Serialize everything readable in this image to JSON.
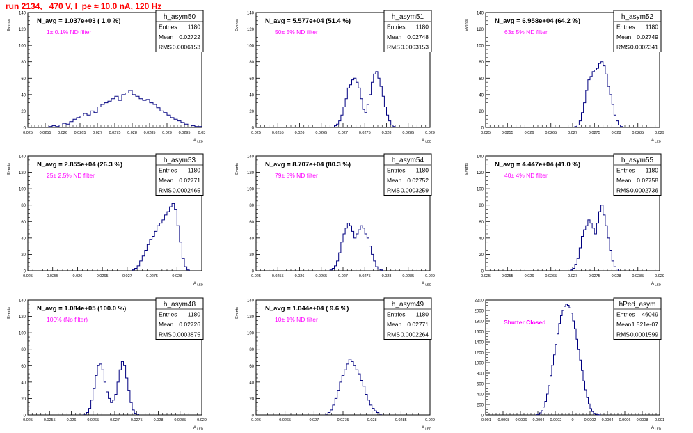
{
  "title": "run 2134,   470 V, I_pe ≈ 10.0 nA, 120 Hz",
  "colors": {
    "title": "#ff0000",
    "hist": "#000080",
    "annotation": "#ff00ff"
  },
  "chart_data": [
    {
      "type": "histogram",
      "name": "h_asym50",
      "navg": "N_avg = 1.037e+03 ( 1.0 %)",
      "filter": "1± 0.1% ND filter",
      "stats": [
        [
          "Entries",
          "1180"
        ],
        [
          "Mean",
          "0.02722"
        ],
        [
          "RMS",
          "0.0006153"
        ]
      ],
      "xlim": [
        0.025,
        0.03
      ],
      "ylim": [
        0,
        140
      ],
      "xlabel": "A_{LED}",
      "ylabel": "Events",
      "xticks": [
        0.025,
        0.0255,
        0.026,
        0.0265,
        0.027,
        0.0275,
        0.028,
        0.0285,
        0.029,
        0.0295,
        0.03
      ],
      "xticklabels": [
        "0.025",
        "0.0255",
        "0.026",
        "0.0265",
        "0.027",
        "0.0275",
        "0.028",
        "0.0285",
        "0.029",
        "0.0295",
        "0.03"
      ],
      "yticks": [
        0,
        20,
        40,
        60,
        80,
        100,
        120,
        140
      ],
      "x0": 0.0256,
      "dx": 0.0001,
      "values": [
        1,
        2,
        1,
        3,
        5,
        4,
        7,
        10,
        12,
        14,
        17,
        15,
        20,
        18,
        25,
        28,
        30,
        32,
        35,
        38,
        33,
        40,
        42,
        45,
        40,
        38,
        35,
        33,
        34,
        30,
        28,
        24,
        20,
        18,
        15,
        12,
        10,
        8,
        6,
        4,
        3,
        2,
        1,
        1
      ]
    },
    {
      "type": "histogram",
      "name": "h_asym51",
      "navg": "N_avg = 5.577e+04 (51.4 %)",
      "filter": "50± 5% ND filter",
      "stats": [
        [
          "Entries",
          "1180"
        ],
        [
          "Mean",
          "0.02748"
        ],
        [
          "RMS",
          "0.0003153"
        ]
      ],
      "xlim": [
        0.025,
        0.029
      ],
      "ylim": [
        0,
        140
      ],
      "xlabel": "A_{LED}",
      "ylabel": "Events",
      "xticks": [
        0.025,
        0.0255,
        0.026,
        0.0265,
        0.027,
        0.0275,
        0.028,
        0.0285,
        0.029
      ],
      "xticklabels": [
        "0.025",
        "0.0255",
        "0.026",
        "0.0265",
        "0.027",
        "0.0275",
        "0.028",
        "0.0285",
        "0.029"
      ],
      "yticks": [
        0,
        20,
        40,
        60,
        80,
        100,
        120,
        140
      ],
      "x0": 0.0268,
      "dx": 5e-05,
      "values": [
        2,
        4,
        8,
        15,
        25,
        35,
        48,
        52,
        58,
        60,
        55,
        48,
        35,
        22,
        18,
        28,
        40,
        55,
        65,
        68,
        60,
        50,
        38,
        25,
        15,
        8,
        3,
        1
      ]
    },
    {
      "type": "histogram",
      "name": "h_asym52",
      "navg": "N_avg = 6.958e+04 (64.2 %)",
      "filter": "63± 5% ND filter",
      "stats": [
        [
          "Entries",
          "1180"
        ],
        [
          "Mean",
          "0.02749"
        ],
        [
          "RMS",
          "0.0002341"
        ]
      ],
      "xlim": [
        0.025,
        0.029
      ],
      "ylim": [
        0,
        140
      ],
      "xlabel": "A_{LED}",
      "ylabel": "Events",
      "xticks": [
        0.025,
        0.0255,
        0.026,
        0.0265,
        0.027,
        0.0275,
        0.028,
        0.0285,
        0.029
      ],
      "xticklabels": [
        "0.025",
        "0.0255",
        "0.026",
        "0.0265",
        "0.027",
        "0.0275",
        "0.028",
        "0.0285",
        "0.029"
      ],
      "yticks": [
        0,
        20,
        40,
        60,
        80,
        100,
        120,
        140
      ],
      "x0": 0.02705,
      "dx": 5e-05,
      "values": [
        1,
        3,
        8,
        18,
        30,
        45,
        58,
        62,
        68,
        70,
        72,
        78,
        80,
        75,
        65,
        50,
        40,
        28,
        15,
        8,
        3,
        1
      ]
    },
    {
      "type": "histogram",
      "name": "h_asym53",
      "navg": "N_avg = 2.855e+04 (26.3 %)",
      "filter": "25± 2.5% ND filter",
      "stats": [
        [
          "Entries",
          "1180"
        ],
        [
          "Mean",
          "0.02771"
        ],
        [
          "RMS",
          "0.0002465"
        ]
      ],
      "xlim": [
        0.025,
        0.0285
      ],
      "ylim": [
        0,
        140
      ],
      "xlabel": "A_{LED}",
      "ylabel": "Events",
      "xticks": [
        0.025,
        0.0255,
        0.026,
        0.0265,
        0.027,
        0.0275,
        0.028
      ],
      "xticklabels": [
        "0.025",
        "0.0255",
        "0.026",
        "0.0265",
        "0.027",
        "0.0275",
        "0.028"
      ],
      "yticks": [
        0,
        20,
        40,
        60,
        80,
        100,
        120,
        140
      ],
      "x0": 0.0271,
      "dx": 5e-05,
      "values": [
        1,
        3,
        6,
        12,
        18,
        25,
        32,
        38,
        42,
        48,
        55,
        58,
        62,
        68,
        72,
        78,
        82,
        75,
        55,
        35,
        15,
        5,
        1
      ]
    },
    {
      "type": "histogram",
      "name": "h_asym54",
      "navg": "N_avg = 8.707e+04 (80.3 %)",
      "filter": "79± 5% ND filter",
      "stats": [
        [
          "Entries",
          "1180"
        ],
        [
          "Mean",
          "0.02752"
        ],
        [
          "RMS",
          "0.0003259"
        ]
      ],
      "xlim": [
        0.025,
        0.029
      ],
      "ylim": [
        0,
        140
      ],
      "xlabel": "A_{LED}",
      "ylabel": "Events",
      "xticks": [
        0.025,
        0.0255,
        0.026,
        0.0265,
        0.027,
        0.0275,
        0.028,
        0.0285,
        0.029
      ],
      "xticklabels": [
        "0.025",
        "0.0255",
        "0.026",
        "0.0265",
        "0.027",
        "0.0275",
        "0.028",
        "0.0285",
        "0.029"
      ],
      "yticks": [
        0,
        20,
        40,
        60,
        80,
        100,
        120,
        140
      ],
      "x0": 0.0267,
      "dx": 5e-05,
      "values": [
        1,
        3,
        6,
        12,
        22,
        35,
        45,
        52,
        58,
        55,
        48,
        40,
        45,
        50,
        55,
        52,
        45,
        40,
        30,
        20,
        12,
        5,
        2,
        1
      ]
    },
    {
      "type": "histogram",
      "name": "h_asym55",
      "navg": "N_avg = 4.447e+04 (41.0 %)",
      "filter": "40± 4% ND filter",
      "stats": [
        [
          "Entries",
          "1180"
        ],
        [
          "Mean",
          "0.02758"
        ],
        [
          "RMS",
          "0.0002736"
        ]
      ],
      "xlim": [
        0.025,
        0.029
      ],
      "ylim": [
        0,
        140
      ],
      "xlabel": "A_{LED}",
      "ylabel": "Events",
      "xticks": [
        0.025,
        0.0255,
        0.026,
        0.0265,
        0.027,
        0.0275,
        0.028,
        0.0285,
        0.029
      ],
      "xticklabels": [
        "0.025",
        "0.0255",
        "0.026",
        "0.0265",
        "0.027",
        "0.0275",
        "0.028",
        "0.0285",
        "0.029"
      ],
      "yticks": [
        0,
        20,
        40,
        60,
        80,
        100,
        120,
        140
      ],
      "x0": 0.02695,
      "dx": 5e-05,
      "values": [
        1,
        3,
        8,
        15,
        28,
        42,
        50,
        55,
        62,
        58,
        52,
        45,
        58,
        72,
        80,
        68,
        55,
        40,
        25,
        12,
        5,
        2
      ]
    },
    {
      "type": "histogram",
      "name": "h_asym48",
      "navg": "N_avg = 1.084e+05 (100.0 %)",
      "filter": "100% (No filter)",
      "stats": [
        [
          "Entries",
          "1180"
        ],
        [
          "Mean",
          "0.02726"
        ],
        [
          "RMS",
          "0.0003875"
        ]
      ],
      "xlim": [
        0.025,
        0.029
      ],
      "ylim": [
        0,
        140
      ],
      "xlabel": "A_{LED}",
      "ylabel": "Events",
      "xticks": [
        0.025,
        0.0255,
        0.026,
        0.0265,
        0.027,
        0.0275,
        0.028,
        0.0285,
        0.029
      ],
      "xticklabels": [
        "0.025",
        "0.0255",
        "0.026",
        "0.0265",
        "0.027",
        "0.0275",
        "0.028",
        "0.0285",
        "0.029"
      ],
      "yticks": [
        0,
        20,
        40,
        60,
        80,
        100,
        120,
        140
      ],
      "x0": 0.0263,
      "dx": 5e-05,
      "values": [
        1,
        3,
        8,
        18,
        32,
        48,
        60,
        62,
        55,
        40,
        28,
        20,
        15,
        18,
        25,
        40,
        55,
        65,
        60,
        45,
        30,
        15,
        6,
        2,
        1
      ]
    },
    {
      "type": "histogram",
      "name": "h_asym49",
      "navg": "N_avg = 1.044e+04 ( 9.6 %)",
      "filter": "10± 1% ND filter",
      "stats": [
        [
          "Entries",
          "1180"
        ],
        [
          "Mean",
          "0.02771"
        ],
        [
          "RMS",
          "0.0002264"
        ]
      ],
      "xlim": [
        0.026,
        0.029
      ],
      "ylim": [
        0,
        140
      ],
      "xlabel": "A_{LED}",
      "ylabel": "Events",
      "xticks": [
        0.026,
        0.0265,
        0.027,
        0.0275,
        0.028,
        0.0285,
        0.029
      ],
      "xticklabels": [
        "0.026",
        "0.0265",
        "0.027",
        "0.0275",
        "0.028",
        "0.0285",
        "0.029"
      ],
      "yticks": [
        0,
        20,
        40,
        60,
        80,
        100,
        120,
        140
      ],
      "x0": 0.0272,
      "dx": 4e-05,
      "values": [
        1,
        3,
        6,
        12,
        20,
        30,
        40,
        48,
        55,
        62,
        68,
        65,
        60,
        55,
        50,
        42,
        35,
        25,
        18,
        12,
        8,
        5,
        3,
        1
      ]
    },
    {
      "type": "histogram",
      "name": "hPed_asym",
      "navg": "",
      "filter": "Shutter Closed",
      "stats": [
        [
          "Entries",
          "46049"
        ],
        [
          "Mean",
          "1.521e-07"
        ],
        [
          "RMS",
          "0.0001599"
        ]
      ],
      "xlim": [
        -0.001,
        0.001
      ],
      "ylim": [
        0,
        2200
      ],
      "xlabel": "A_{LED}",
      "ylabel": "",
      "xticks": [
        -0.001,
        -0.0008,
        -0.0006,
        -0.0004,
        -0.0002,
        0,
        0.0002,
        0.0004,
        0.0006,
        0.0008,
        0.001
      ],
      "xticklabels": [
        "-0.001",
        "-0.0008",
        "-0.0006",
        "-0.0004",
        "-0.0002",
        "0",
        "0.0002",
        "0.0004",
        "0.0006",
        "0.0008",
        "0.001"
      ],
      "yticks": [
        0,
        200,
        400,
        600,
        800,
        1000,
        1200,
        1400,
        1600,
        1800,
        2000,
        2200
      ],
      "x0": -0.00042,
      "dx": 2e-05,
      "values": [
        5,
        15,
        40,
        80,
        150,
        260,
        400,
        560,
        750,
        950,
        1150,
        1350,
        1550,
        1750,
        1900,
        2000,
        2080,
        2120,
        2100,
        2050,
        1950,
        1800,
        1650,
        1450,
        1250,
        1050,
        850,
        650,
        480,
        330,
        210,
        120,
        65,
        30,
        12,
        5,
        2
      ]
    }
  ]
}
